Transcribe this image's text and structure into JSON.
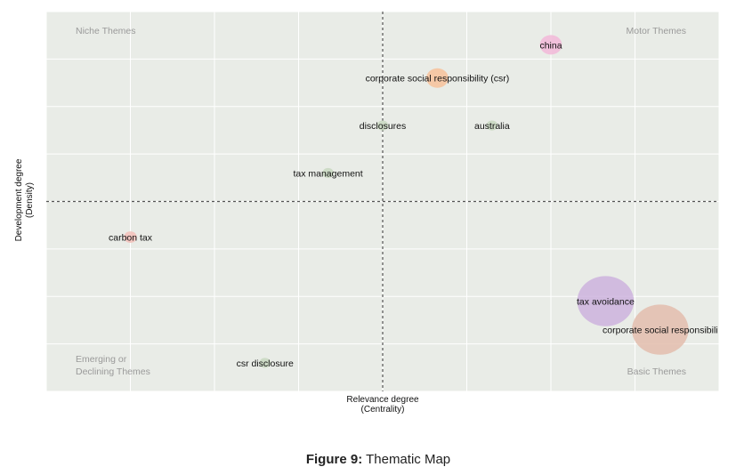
{
  "chart_data": {
    "type": "scatter",
    "xlabel": [
      "Relevance degree",
      "(Centrality)"
    ],
    "ylabel": [
      "Development degree",
      "(Density)"
    ],
    "xlim": [
      0,
      8
    ],
    "ylim": [
      0,
      8
    ],
    "grid": true,
    "quadrants": {
      "top_left": [
        "Niche Themes"
      ],
      "top_right": [
        "Motor Themes"
      ],
      "bottom_left": [
        "Emerging or",
        "Declining Themes"
      ],
      "bottom_right": [
        "Basic Themes"
      ]
    },
    "points": [
      {
        "label": "china",
        "x": 6.0,
        "y": 7.3,
        "size": 0.12,
        "color": "#f2b8d8"
      },
      {
        "label": "corporate social responsibility (csr)",
        "x": 4.65,
        "y": 6.6,
        "size": 0.12,
        "color": "#f7c29a"
      },
      {
        "label": "disclosures",
        "x": 4.0,
        "y": 5.6,
        "size": 0.02,
        "color": "#c8d8c0"
      },
      {
        "label": "australia",
        "x": 5.3,
        "y": 5.6,
        "size": 0.02,
        "color": "#c8d8c0"
      },
      {
        "label": "tax management",
        "x": 3.35,
        "y": 4.6,
        "size": 0.02,
        "color": "#c8d8c0"
      },
      {
        "label": "carbon tax",
        "x": 1.0,
        "y": 3.25,
        "size": 0.03,
        "color": "#f3c0b8"
      },
      {
        "label": "tax avoidance",
        "x": 6.65,
        "y": 1.9,
        "size": 1.0,
        "color": "#cdb3dd"
      },
      {
        "label": "corporate social responsibili",
        "x": 7.3,
        "y": 1.3,
        "size": 1.0,
        "color": "#e3bdad"
      },
      {
        "label": "csr disclosure",
        "x": 2.6,
        "y": 0.6,
        "size": 0.02,
        "color": "#c8d8c0"
      }
    ]
  },
  "caption": {
    "prefix": "Figure 9:",
    "text": "Thematic Map"
  }
}
